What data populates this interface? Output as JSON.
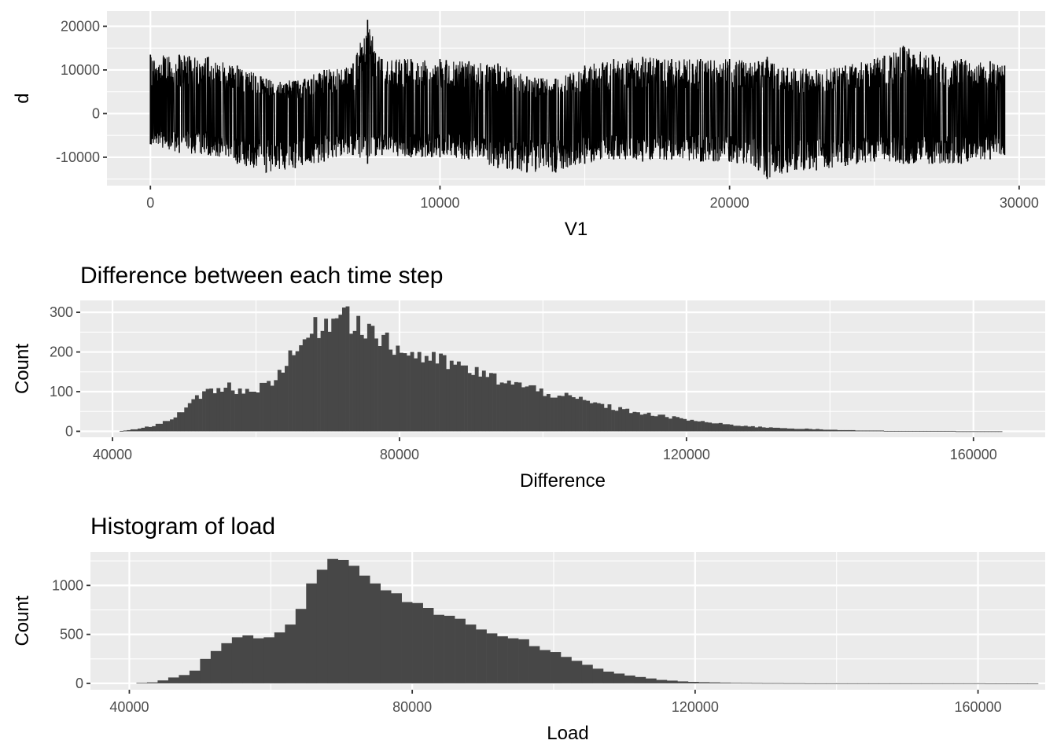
{
  "chart_data": [
    {
      "type": "line",
      "title": "",
      "xlabel": "V1",
      "ylabel": "d",
      "xlim": [
        -1500,
        30900
      ],
      "ylim": [
        -16500,
        23500
      ],
      "x_ticks": [
        0,
        10000,
        20000,
        30000
      ],
      "y_ticks": [
        -10000,
        0,
        10000,
        20000
      ],
      "x_tick_labels": [
        "0",
        "10000",
        "20000",
        "30000"
      ],
      "y_tick_labels": [
        "-10000",
        "0",
        "10000",
        "20000"
      ],
      "n_points": 29500,
      "envelope": {
        "x": [
          0,
          1000,
          2000,
          3000,
          4000,
          5000,
          6000,
          7000,
          7500,
          8000,
          9000,
          10000,
          11000,
          12000,
          13000,
          14000,
          15000,
          16000,
          17000,
          18000,
          19000,
          20000,
          21000,
          21300,
          22000,
          23000,
          24000,
          25000,
          26000,
          27000,
          28000,
          29000,
          29500
        ],
        "upper": [
          13500,
          13500,
          13000,
          11000,
          8000,
          7500,
          10000,
          11500,
          21500,
          12500,
          12500,
          12500,
          12000,
          11500,
          8500,
          8000,
          11000,
          12500,
          13000,
          12500,
          12500,
          12500,
          12000,
          13000,
          10500,
          10000,
          11000,
          12500,
          15500,
          13500,
          12500,
          12000,
          11000
        ],
        "lower": [
          -7000,
          -9000,
          -9500,
          -11500,
          -13500,
          -12500,
          -11000,
          -9500,
          -11500,
          -9500,
          -10000,
          -10000,
          -10500,
          -12500,
          -13500,
          -13500,
          -11500,
          -10500,
          -11000,
          -10500,
          -11000,
          -11000,
          -13000,
          -15000,
          -13500,
          -13000,
          -12000,
          -11000,
          -11500,
          -11500,
          -11500,
          -10500,
          -9500
        ]
      },
      "grid": true
    },
    {
      "type": "bar",
      "title": "Difference between each time step",
      "xlabel": "Difference",
      "ylabel": "Count",
      "xlim": [
        35500,
        170000
      ],
      "ylim": [
        -15,
        330
      ],
      "x_ticks": [
        40000,
        80000,
        120000,
        160000
      ],
      "y_ticks": [
        0,
        100,
        200,
        300
      ],
      "x_tick_labels": [
        "40000",
        "80000",
        "120000",
        "160000"
      ],
      "y_tick_labels": [
        "0",
        "100",
        "200",
        "300"
      ],
      "bin_start": 41000,
      "bin_width": 500,
      "profile": {
        "x": [
          41000,
          43000,
          44000,
          46000,
          48000,
          50000,
          52000,
          54000,
          56000,
          58000,
          60000,
          62000,
          64000,
          66000,
          68000,
          70000,
          72000,
          74000,
          76000,
          78000,
          80000,
          84000,
          88000,
          92000,
          96000,
          100000,
          105000,
          110000,
          115000,
          120000,
          125000,
          130000,
          135000,
          140000,
          145000,
          150000,
          155000,
          160000,
          164000
        ],
        "counts": [
          0,
          5,
          8,
          15,
          30,
          55,
          85,
          105,
          115,
          100,
          105,
          125,
          165,
          210,
          255,
          280,
          285,
          275,
          255,
          225,
          205,
          185,
          165,
          140,
          120,
          100,
          80,
          58,
          42,
          30,
          18,
          11,
          7,
          4,
          2,
          1,
          1,
          0,
          0
        ]
      },
      "spikes": [
        {
          "x": 72000,
          "count": 312
        },
        {
          "x": 72500,
          "count": 315
        }
      ],
      "grid": true
    },
    {
      "type": "bar",
      "title": "Histogram of load",
      "xlabel": "Load",
      "ylabel": "Count",
      "xlim": [
        34500,
        169500
      ],
      "ylim": [
        -65,
        1340
      ],
      "x_ticks": [
        40000,
        80000,
        120000,
        160000
      ],
      "y_ticks": [
        0,
        500,
        1000
      ],
      "x_tick_labels": [
        "40000",
        "80000",
        "120000",
        "160000"
      ],
      "y_tick_labels": [
        "0",
        "500",
        "1000"
      ],
      "bin_start": 41000,
      "bin_width": 1500,
      "counts": [
        5,
        10,
        30,
        60,
        85,
        130,
        250,
        330,
        410,
        470,
        490,
        460,
        470,
        520,
        600,
        760,
        1020,
        1160,
        1270,
        1260,
        1200,
        1100,
        1020,
        950,
        920,
        830,
        820,
        770,
        700,
        690,
        660,
        600,
        550,
        510,
        480,
        460,
        450,
        380,
        340,
        320,
        270,
        230,
        190,
        150,
        120,
        100,
        80,
        65,
        50,
        35,
        28,
        20,
        15,
        12,
        10,
        8,
        6,
        5,
        4,
        3,
        3,
        2,
        2,
        1,
        1,
        1,
        1,
        1,
        1,
        1,
        1,
        1,
        1,
        1,
        1,
        1,
        1,
        1,
        1,
        1,
        0,
        0,
        0,
        0,
        0
      ],
      "grid": true
    }
  ]
}
